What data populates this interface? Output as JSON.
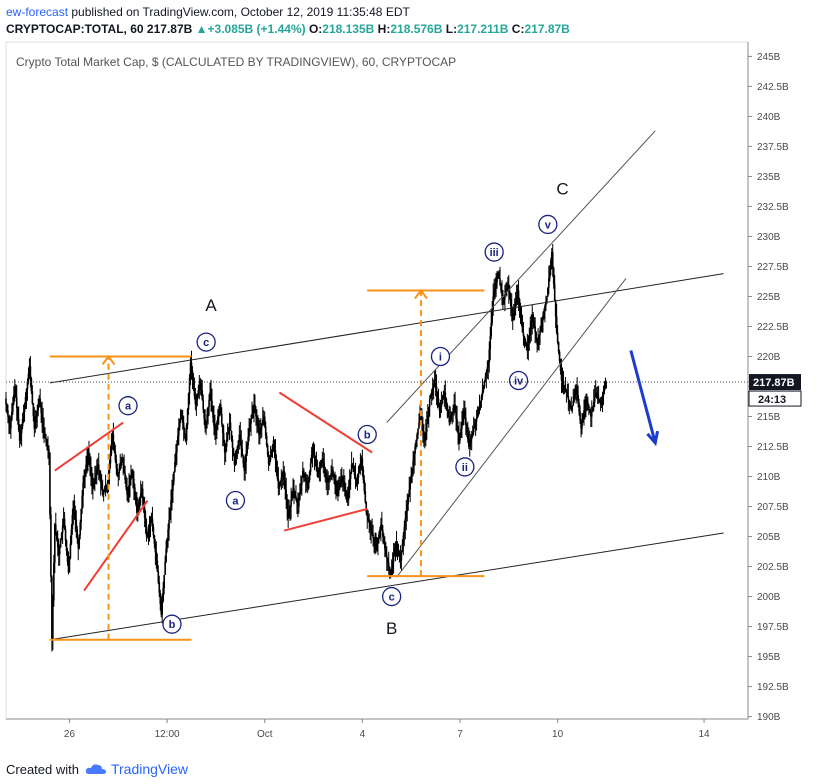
{
  "header": {
    "author": "ew-forecast",
    "published_text": "published on TradingView.com, October 12, 2019 11:35:48 EDT",
    "symbol": "CRYPTOCAP:TOTAL, 60",
    "last": "217.87B",
    "change": "▲+3.085B (+1.44%)",
    "o_label": "O:",
    "o_value": "218.135B",
    "h_label": "H:",
    "h_value": "218.576B",
    "l_label": "L:",
    "l_value": "217.211B",
    "c_label": "C:",
    "c_value": "217.87B"
  },
  "footer": {
    "created_with": "Created with",
    "logo_text": "TradingView"
  },
  "chart_data": {
    "type": "candlestick",
    "title": "Crypto Total Market Cap, $ (CALCULATED BY TRADINGVIEW), 60, CRYPTOCAP",
    "ylabel": "",
    "xlabel": "",
    "ylim": [
      189.8,
      246.2
    ],
    "y_ticks": [
      "245B",
      "242.5B",
      "240B",
      "237.5B",
      "235B",
      "232.5B",
      "230B",
      "227.5B",
      "225B",
      "222.5B",
      "220B",
      "217.5B",
      "215B",
      "212.5B",
      "210B",
      "207.5B",
      "205B",
      "202.5B",
      "200B",
      "197.5B",
      "195B",
      "192.5B",
      "190B"
    ],
    "x_ticks": [
      "26",
      "12:00",
      "Oct",
      "4",
      "7",
      "10",
      "14"
    ],
    "x_tick_pos": [
      0.5,
      1.5,
      2.5,
      3.5,
      4.5,
      5.5,
      7.0
    ],
    "xlim": [
      -0.15,
      7.45
    ],
    "last_price": 217.87,
    "last_price_label": "217.87B",
    "countdown_label": "24:13",
    "series": [
      {
        "kind": "price",
        "points": [
          [
            -0.15,
            216.5
          ],
          [
            -0.1,
            214.0
          ],
          [
            -0.05,
            217.5
          ],
          [
            0.0,
            213.0
          ],
          [
            0.05,
            216.0
          ],
          [
            0.1,
            219.2
          ],
          [
            0.15,
            214.0
          ],
          [
            0.2,
            216.5
          ],
          [
            0.25,
            213.5
          ],
          [
            0.3,
            212.0
          ],
          [
            0.33,
            196.5
          ],
          [
            0.36,
            206.0
          ],
          [
            0.4,
            203.5
          ],
          [
            0.45,
            206.5
          ],
          [
            0.5,
            202.0
          ],
          [
            0.55,
            208.0
          ],
          [
            0.6,
            204.0
          ],
          [
            0.65,
            209.5
          ],
          [
            0.7,
            212.0
          ],
          [
            0.75,
            209.0
          ],
          [
            0.8,
            211.0
          ],
          [
            0.85,
            208.5
          ],
          [
            0.9,
            209.5
          ],
          [
            0.95,
            213.5
          ],
          [
            1.0,
            210.0
          ],
          [
            1.05,
            211.5
          ],
          [
            1.1,
            208.5
          ],
          [
            1.15,
            210.5
          ],
          [
            1.2,
            207.0
          ],
          [
            1.25,
            209.0
          ],
          [
            1.3,
            205.0
          ],
          [
            1.35,
            206.5
          ],
          [
            1.4,
            203.0
          ],
          [
            1.45,
            198.5
          ],
          [
            1.5,
            204.0
          ],
          [
            1.55,
            208.0
          ],
          [
            1.6,
            212.0
          ],
          [
            1.65,
            215.5
          ],
          [
            1.7,
            213.0
          ],
          [
            1.75,
            219.5
          ],
          [
            1.8,
            216.0
          ],
          [
            1.85,
            218.0
          ],
          [
            1.9,
            214.0
          ],
          [
            1.95,
            217.0
          ],
          [
            2.0,
            213.5
          ],
          [
            2.05,
            216.0
          ],
          [
            2.1,
            212.0
          ],
          [
            2.15,
            214.5
          ],
          [
            2.2,
            211.0
          ],
          [
            2.25,
            213.5
          ],
          [
            2.3,
            210.5
          ],
          [
            2.35,
            214.0
          ],
          [
            2.4,
            216.0
          ],
          [
            2.45,
            213.5
          ],
          [
            2.5,
            215.0
          ],
          [
            2.55,
            211.0
          ],
          [
            2.6,
            213.0
          ],
          [
            2.65,
            209.0
          ],
          [
            2.7,
            210.5
          ],
          [
            2.75,
            206.5
          ],
          [
            2.8,
            209.0
          ],
          [
            2.85,
            207.5
          ],
          [
            2.9,
            210.5
          ],
          [
            2.95,
            209.0
          ],
          [
            3.0,
            212.5
          ],
          [
            3.05,
            210.0
          ],
          [
            3.1,
            211.5
          ],
          [
            3.15,
            209.5
          ],
          [
            3.2,
            210.5
          ],
          [
            3.25,
            208.5
          ],
          [
            3.3,
            210.0
          ],
          [
            3.35,
            208.0
          ],
          [
            3.4,
            211.0
          ],
          [
            3.45,
            209.5
          ],
          [
            3.5,
            211.5
          ],
          [
            3.55,
            207.0
          ],
          [
            3.6,
            205.5
          ],
          [
            3.65,
            204.0
          ],
          [
            3.7,
            206.0
          ],
          [
            3.75,
            203.5
          ],
          [
            3.8,
            201.8
          ],
          [
            3.85,
            204.5
          ],
          [
            3.9,
            203.0
          ],
          [
            3.95,
            206.5
          ],
          [
            4.0,
            209.5
          ],
          [
            4.05,
            212.5
          ],
          [
            4.1,
            215.0
          ],
          [
            4.15,
            213.0
          ],
          [
            4.2,
            216.5
          ],
          [
            4.25,
            218.0
          ],
          [
            4.3,
            215.5
          ],
          [
            4.35,
            217.0
          ],
          [
            4.4,
            214.5
          ],
          [
            4.45,
            216.0
          ],
          [
            4.5,
            213.0
          ],
          [
            4.55,
            215.5
          ],
          [
            4.6,
            212.5
          ],
          [
            4.65,
            214.0
          ],
          [
            4.7,
            215.5
          ],
          [
            4.75,
            217.5
          ],
          [
            4.8,
            219.5
          ],
          [
            4.85,
            225.0
          ],
          [
            4.9,
            227.0
          ],
          [
            4.95,
            224.5
          ],
          [
            5.0,
            226.0
          ],
          [
            5.05,
            223.0
          ],
          [
            5.1,
            225.5
          ],
          [
            5.15,
            222.0
          ],
          [
            5.2,
            220.5
          ],
          [
            5.25,
            223.5
          ],
          [
            5.3,
            221.0
          ],
          [
            5.35,
            223.0
          ],
          [
            5.4,
            225.0
          ],
          [
            5.45,
            228.7
          ],
          [
            5.5,
            222.0
          ],
          [
            5.55,
            218.0
          ],
          [
            5.6,
            217.0
          ],
          [
            5.65,
            215.5
          ],
          [
            5.7,
            217.5
          ],
          [
            5.75,
            214.0
          ],
          [
            5.8,
            216.5
          ],
          [
            5.85,
            215.0
          ],
          [
            5.9,
            217.0
          ],
          [
            5.95,
            216.0
          ],
          [
            6.0,
            217.87
          ]
        ]
      }
    ],
    "annotations": {
      "channel_main": [
        [
          [
            0.3,
            196.4
          ],
          [
            7.2,
            205.3
          ]
        ],
        [
          [
            0.3,
            217.8
          ],
          [
            7.2,
            226.9
          ]
        ]
      ],
      "channel_rising": [
        [
          [
            3.85,
            201.6
          ],
          [
            6.2,
            226.5
          ]
        ],
        [
          [
            3.75,
            214.5
          ],
          [
            6.5,
            238.8
          ]
        ]
      ],
      "red_lines": [
        [
          [
            0.35,
            210.5
          ],
          [
            1.05,
            214.5
          ]
        ],
        [
          [
            0.65,
            200.5
          ],
          [
            1.3,
            208.0
          ]
        ],
        [
          [
            2.65,
            217.0
          ],
          [
            3.6,
            212.0
          ]
        ],
        [
          [
            2.7,
            205.5
          ],
          [
            3.55,
            207.3
          ]
        ]
      ],
      "orange_horizontals": [
        [
          [
            0.3,
            196.4
          ],
          [
            1.75,
            196.4
          ]
        ],
        [
          [
            0.3,
            220.0
          ],
          [
            1.75,
            220.0
          ]
        ],
        [
          [
            3.55,
            225.5
          ],
          [
            4.75,
            225.5
          ]
        ],
        [
          [
            3.55,
            201.7
          ],
          [
            4.75,
            201.7
          ]
        ]
      ],
      "orange_verticals": [
        {
          "x": 0.9,
          "from": 196.4,
          "to": 220.0
        },
        {
          "x": 4.1,
          "from": 201.7,
          "to": 225.5
        }
      ],
      "blue_arrow": [
        [
          6.25,
          220.5
        ],
        [
          6.5,
          212.8
        ]
      ],
      "wave_labels": [
        {
          "text": "a",
          "x": 1.1,
          "y": 215.9
        },
        {
          "text": "b",
          "x": 1.55,
          "y": 197.7
        },
        {
          "text": "c",
          "x": 1.9,
          "y": 221.2
        },
        {
          "text": "a",
          "x": 2.2,
          "y": 208.0
        },
        {
          "text": "b",
          "x": 3.55,
          "y": 213.5
        },
        {
          "text": "c",
          "x": 3.8,
          "y": 200.0
        },
        {
          "text": "i",
          "x": 4.3,
          "y": 220.0
        },
        {
          "text": "ii",
          "x": 4.55,
          "y": 210.8
        },
        {
          "text": "iii",
          "x": 4.85,
          "y": 228.7
        },
        {
          "text": "iv",
          "x": 5.1,
          "y": 218.0
        },
        {
          "text": "v",
          "x": 5.4,
          "y": 231.0
        }
      ],
      "big_labels": [
        {
          "text": "A",
          "x": 1.95,
          "y": 223.8
        },
        {
          "text": "B",
          "x": 3.8,
          "y": 196.9
        },
        {
          "text": "C",
          "x": 5.55,
          "y": 233.5
        }
      ]
    }
  }
}
